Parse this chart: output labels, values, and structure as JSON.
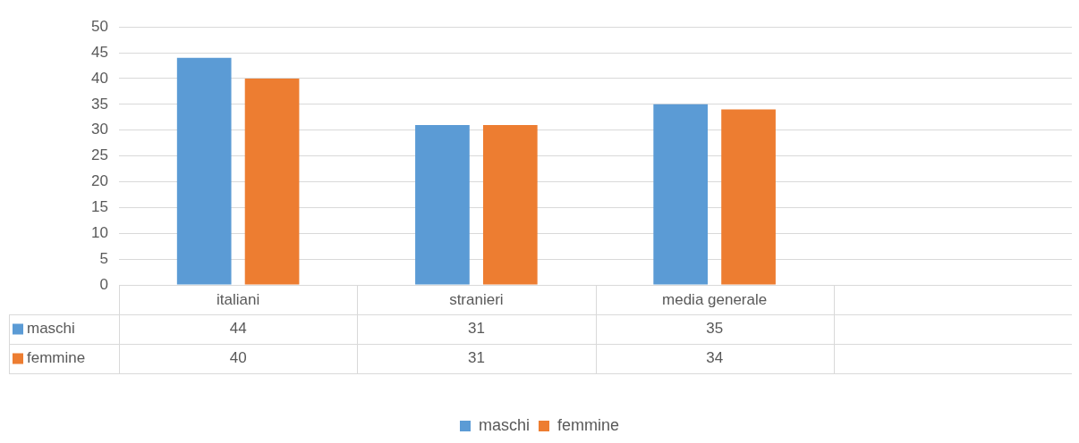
{
  "chart_data": {
    "type": "bar",
    "categories": [
      "italiani",
      "stranieri",
      "media generale",
      null
    ],
    "series": [
      {
        "name": "maschi",
        "color": "#5b9bd5",
        "values": [
          44,
          31,
          35,
          null
        ]
      },
      {
        "name": "femmine",
        "color": "#ed7d31",
        "values": [
          40,
          31,
          34,
          null
        ]
      }
    ],
    "ylim": [
      0,
      50
    ],
    "yticks": [
      0,
      5,
      10,
      15,
      20,
      25,
      30,
      35,
      40,
      45,
      50
    ],
    "grid": "y",
    "legend": "bottom",
    "data_labels": true
  }
}
